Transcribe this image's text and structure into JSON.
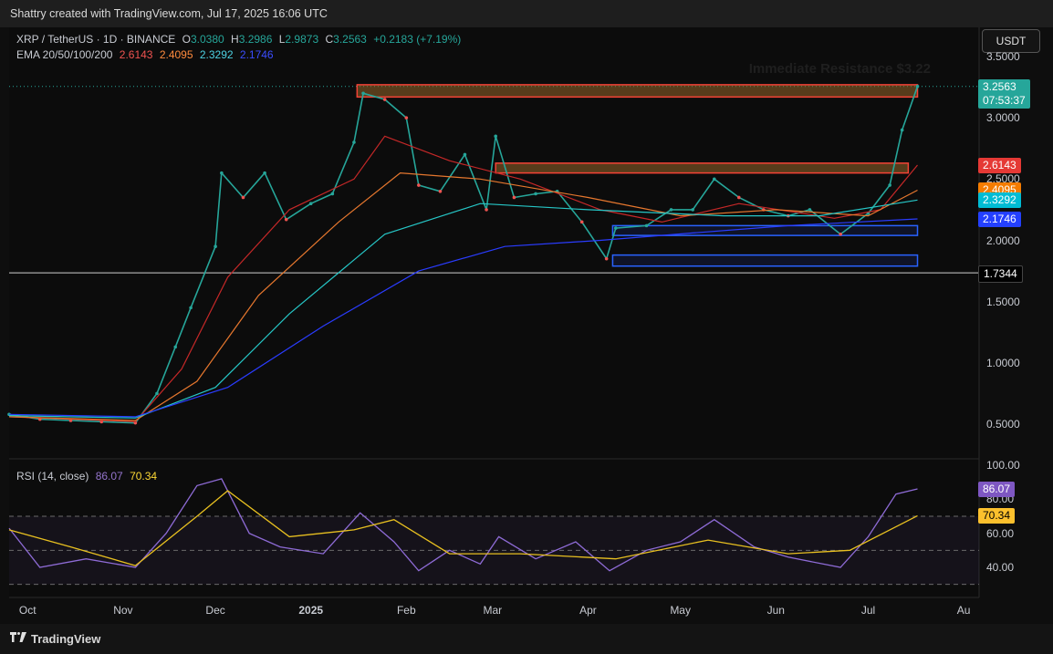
{
  "header": {
    "caption": "Shattry created with TradingView.com, Jul 17, 2025 16:06 UTC"
  },
  "legend": {
    "symbol": "XRP / TetherUS · 1D · BINANCE",
    "open_label": "O",
    "open": "3.0380",
    "high_label": "H",
    "high": "3.2986",
    "low_label": "L",
    "low": "2.9873",
    "close_label": "C",
    "close": "3.2563",
    "change": "+0.2183 (+7.19%)",
    "ema_label": "EMA 20/50/100/200",
    "ema20": "2.6143",
    "ema50": "2.4095",
    "ema100": "2.3292",
    "ema200": "2.1746",
    "rsi_label": "RSI (14, close)",
    "rsi": "86.07",
    "rsi_ma": "70.34"
  },
  "currency_button": "USDT",
  "annotation": "Immediate Resistance $3.22",
  "footer": {
    "brand": "TradingView"
  },
  "colors": {
    "up": "#26a69a",
    "down": "#ef5350",
    "ema20": "#c62828",
    "ema50": "#e6772e",
    "ema100": "#26c6c6",
    "ema200": "#2a3cff",
    "rsi": "#8e6bd6",
    "rsi_ma": "#e8c020",
    "resistance": "#f44336",
    "support": "#2962ff"
  },
  "chart_data": [
    {
      "type": "line",
      "title": "XRP / TetherUS · 1D · BINANCE",
      "x_ticks": [
        "Oct",
        "Nov",
        "Dec",
        "2025",
        "Feb",
        "Mar",
        "Apr",
        "May",
        "Jun",
        "Jul",
        "Au"
      ],
      "y_ticks": [
        "3.5000",
        "3.0000",
        "2.5000",
        "2.0000",
        "1.5000",
        "1.0000",
        "0.5000"
      ],
      "ylim": [
        0.3,
        3.6
      ],
      "price_tags": [
        {
          "label": "3.2563",
          "sub": "07:53:37",
          "value": 3.2563,
          "color": "#26a69a"
        },
        {
          "label": "2.6143",
          "value": 2.6143,
          "color": "#e53935"
        },
        {
          "label": "2.4095",
          "value": 2.4095,
          "color": "#f57c00"
        },
        {
          "label": "2.3292",
          "value": 2.3292,
          "color": "#00bcd4"
        },
        {
          "label": "2.1746",
          "value": 2.1746,
          "color": "#2440ff"
        },
        {
          "label": "1.7344",
          "value": 1.7344,
          "color": "#000000"
        }
      ],
      "horizontal_line": 1.7344,
      "zones": [
        {
          "kind": "resistance",
          "from": "2025-01-16",
          "to": "2025-07-17",
          "low": 3.17,
          "high": 3.27
        },
        {
          "kind": "resistance",
          "from": "2025-03-02",
          "to": "2025-07-14",
          "low": 2.55,
          "high": 2.63
        },
        {
          "kind": "support",
          "from": "2025-04-09",
          "to": "2025-07-17",
          "low": 2.04,
          "high": 2.12
        },
        {
          "kind": "support",
          "from": "2025-04-09",
          "to": "2025-07-17",
          "low": 1.79,
          "high": 1.88
        }
      ],
      "series": [
        {
          "name": "Close",
          "x": [
            "2024-09-25",
            "2024-10-05",
            "2024-10-15",
            "2024-10-25",
            "2024-11-05",
            "2024-11-12",
            "2024-11-18",
            "2024-11-23",
            "2024-12-01",
            "2024-12-03",
            "2024-12-10",
            "2024-12-17",
            "2024-12-24",
            "2025-01-01",
            "2025-01-08",
            "2025-01-15",
            "2025-01-18",
            "2025-01-25",
            "2025-02-01",
            "2025-02-05",
            "2025-02-12",
            "2025-02-20",
            "2025-02-27",
            "2025-03-02",
            "2025-03-08",
            "2025-03-15",
            "2025-03-22",
            "2025-03-30",
            "2025-04-07",
            "2025-04-10",
            "2025-04-20",
            "2025-04-28",
            "2025-05-05",
            "2025-05-12",
            "2025-05-20",
            "2025-05-28",
            "2025-06-05",
            "2025-06-12",
            "2025-06-22",
            "2025-07-01",
            "2025-07-08",
            "2025-07-12",
            "2025-07-17"
          ],
          "values": [
            0.58,
            0.54,
            0.53,
            0.52,
            0.51,
            0.75,
            1.13,
            1.45,
            1.95,
            2.55,
            2.35,
            2.55,
            2.17,
            2.3,
            2.38,
            2.8,
            3.2,
            3.15,
            3.0,
            2.45,
            2.4,
            2.7,
            2.25,
            2.85,
            2.35,
            2.38,
            2.4,
            2.15,
            1.85,
            2.1,
            2.12,
            2.25,
            2.25,
            2.5,
            2.35,
            2.25,
            2.2,
            2.25,
            2.05,
            2.22,
            2.45,
            2.9,
            3.2563
          ]
        },
        {
          "name": "EMA 20",
          "x": [
            "2024-09-25",
            "2024-11-05",
            "2024-11-20",
            "2024-12-05",
            "2024-12-25",
            "2025-01-15",
            "2025-01-25",
            "2025-02-15",
            "2025-03-10",
            "2025-04-05",
            "2025-04-25",
            "2025-05-20",
            "2025-06-20",
            "2025-07-05",
            "2025-07-17"
          ],
          "values": [
            0.56,
            0.52,
            0.95,
            1.7,
            2.25,
            2.5,
            2.85,
            2.65,
            2.5,
            2.25,
            2.15,
            2.3,
            2.18,
            2.25,
            2.6143
          ]
        },
        {
          "name": "EMA 50",
          "x": [
            "2024-09-25",
            "2024-11-05",
            "2024-11-25",
            "2024-12-15",
            "2025-01-10",
            "2025-01-30",
            "2025-02-25",
            "2025-04-01",
            "2025-05-01",
            "2025-06-01",
            "2025-07-01",
            "2025-07-17"
          ],
          "values": [
            0.56,
            0.53,
            0.85,
            1.55,
            2.15,
            2.55,
            2.5,
            2.35,
            2.2,
            2.25,
            2.2,
            2.4095
          ]
        },
        {
          "name": "EMA 100",
          "x": [
            "2024-09-25",
            "2024-11-05",
            "2024-12-01",
            "2024-12-25",
            "2025-01-25",
            "2025-02-25",
            "2025-04-01",
            "2025-05-15",
            "2025-06-15",
            "2025-07-17"
          ],
          "values": [
            0.57,
            0.55,
            0.8,
            1.4,
            2.05,
            2.3,
            2.25,
            2.2,
            2.2,
            2.3292
          ]
        },
        {
          "name": "EMA 200",
          "x": [
            "2024-09-25",
            "2024-11-05",
            "2024-12-05",
            "2025-01-05",
            "2025-02-05",
            "2025-03-05",
            "2025-04-05",
            "2025-05-05",
            "2025-06-05",
            "2025-07-17"
          ],
          "values": [
            0.58,
            0.56,
            0.8,
            1.3,
            1.75,
            1.95,
            2.0,
            2.06,
            2.12,
            2.1746
          ]
        }
      ]
    },
    {
      "type": "line",
      "title": "RSI (14, close)",
      "y_ticks": [
        "100.00",
        "80.00",
        "60.00",
        "40.00"
      ],
      "ylim": [
        30,
        100
      ],
      "bands": [
        30,
        50,
        70
      ],
      "value_tags": [
        {
          "label": "86.07",
          "value": 86.07,
          "color": "#7e57c2"
        },
        {
          "label": "70.34",
          "value": 70.34,
          "color": "#fbc02d"
        }
      ],
      "series": [
        {
          "name": "RSI",
          "x": [
            "2024-09-25",
            "2024-10-05",
            "2024-10-20",
            "2024-11-05",
            "2024-11-15",
            "2024-11-25",
            "2024-12-03",
            "2024-12-12",
            "2024-12-22",
            "2025-01-05",
            "2025-01-17",
            "2025-01-28",
            "2025-02-05",
            "2025-02-15",
            "2025-02-25",
            "2025-03-03",
            "2025-03-15",
            "2025-03-28",
            "2025-04-08",
            "2025-04-20",
            "2025-05-01",
            "2025-05-12",
            "2025-05-25",
            "2025-06-05",
            "2025-06-22",
            "2025-07-01",
            "2025-07-10",
            "2025-07-17"
          ],
          "values": [
            63,
            40,
            45,
            40,
            60,
            88,
            92,
            60,
            52,
            48,
            72,
            55,
            38,
            50,
            42,
            58,
            45,
            55,
            38,
            50,
            55,
            68,
            52,
            46,
            40,
            58,
            83,
            86.07
          ]
        },
        {
          "name": "RSI MA",
          "x": [
            "2024-09-25",
            "2024-10-15",
            "2024-11-05",
            "2024-11-25",
            "2024-12-05",
            "2024-12-25",
            "2025-01-15",
            "2025-01-28",
            "2025-02-15",
            "2025-03-10",
            "2025-04-10",
            "2025-05-10",
            "2025-06-05",
            "2025-06-25",
            "2025-07-17"
          ],
          "values": [
            62,
            52,
            41,
            70,
            85,
            58,
            62,
            68,
            48,
            48,
            45,
            56,
            48,
            50,
            70.34
          ]
        }
      ]
    }
  ]
}
